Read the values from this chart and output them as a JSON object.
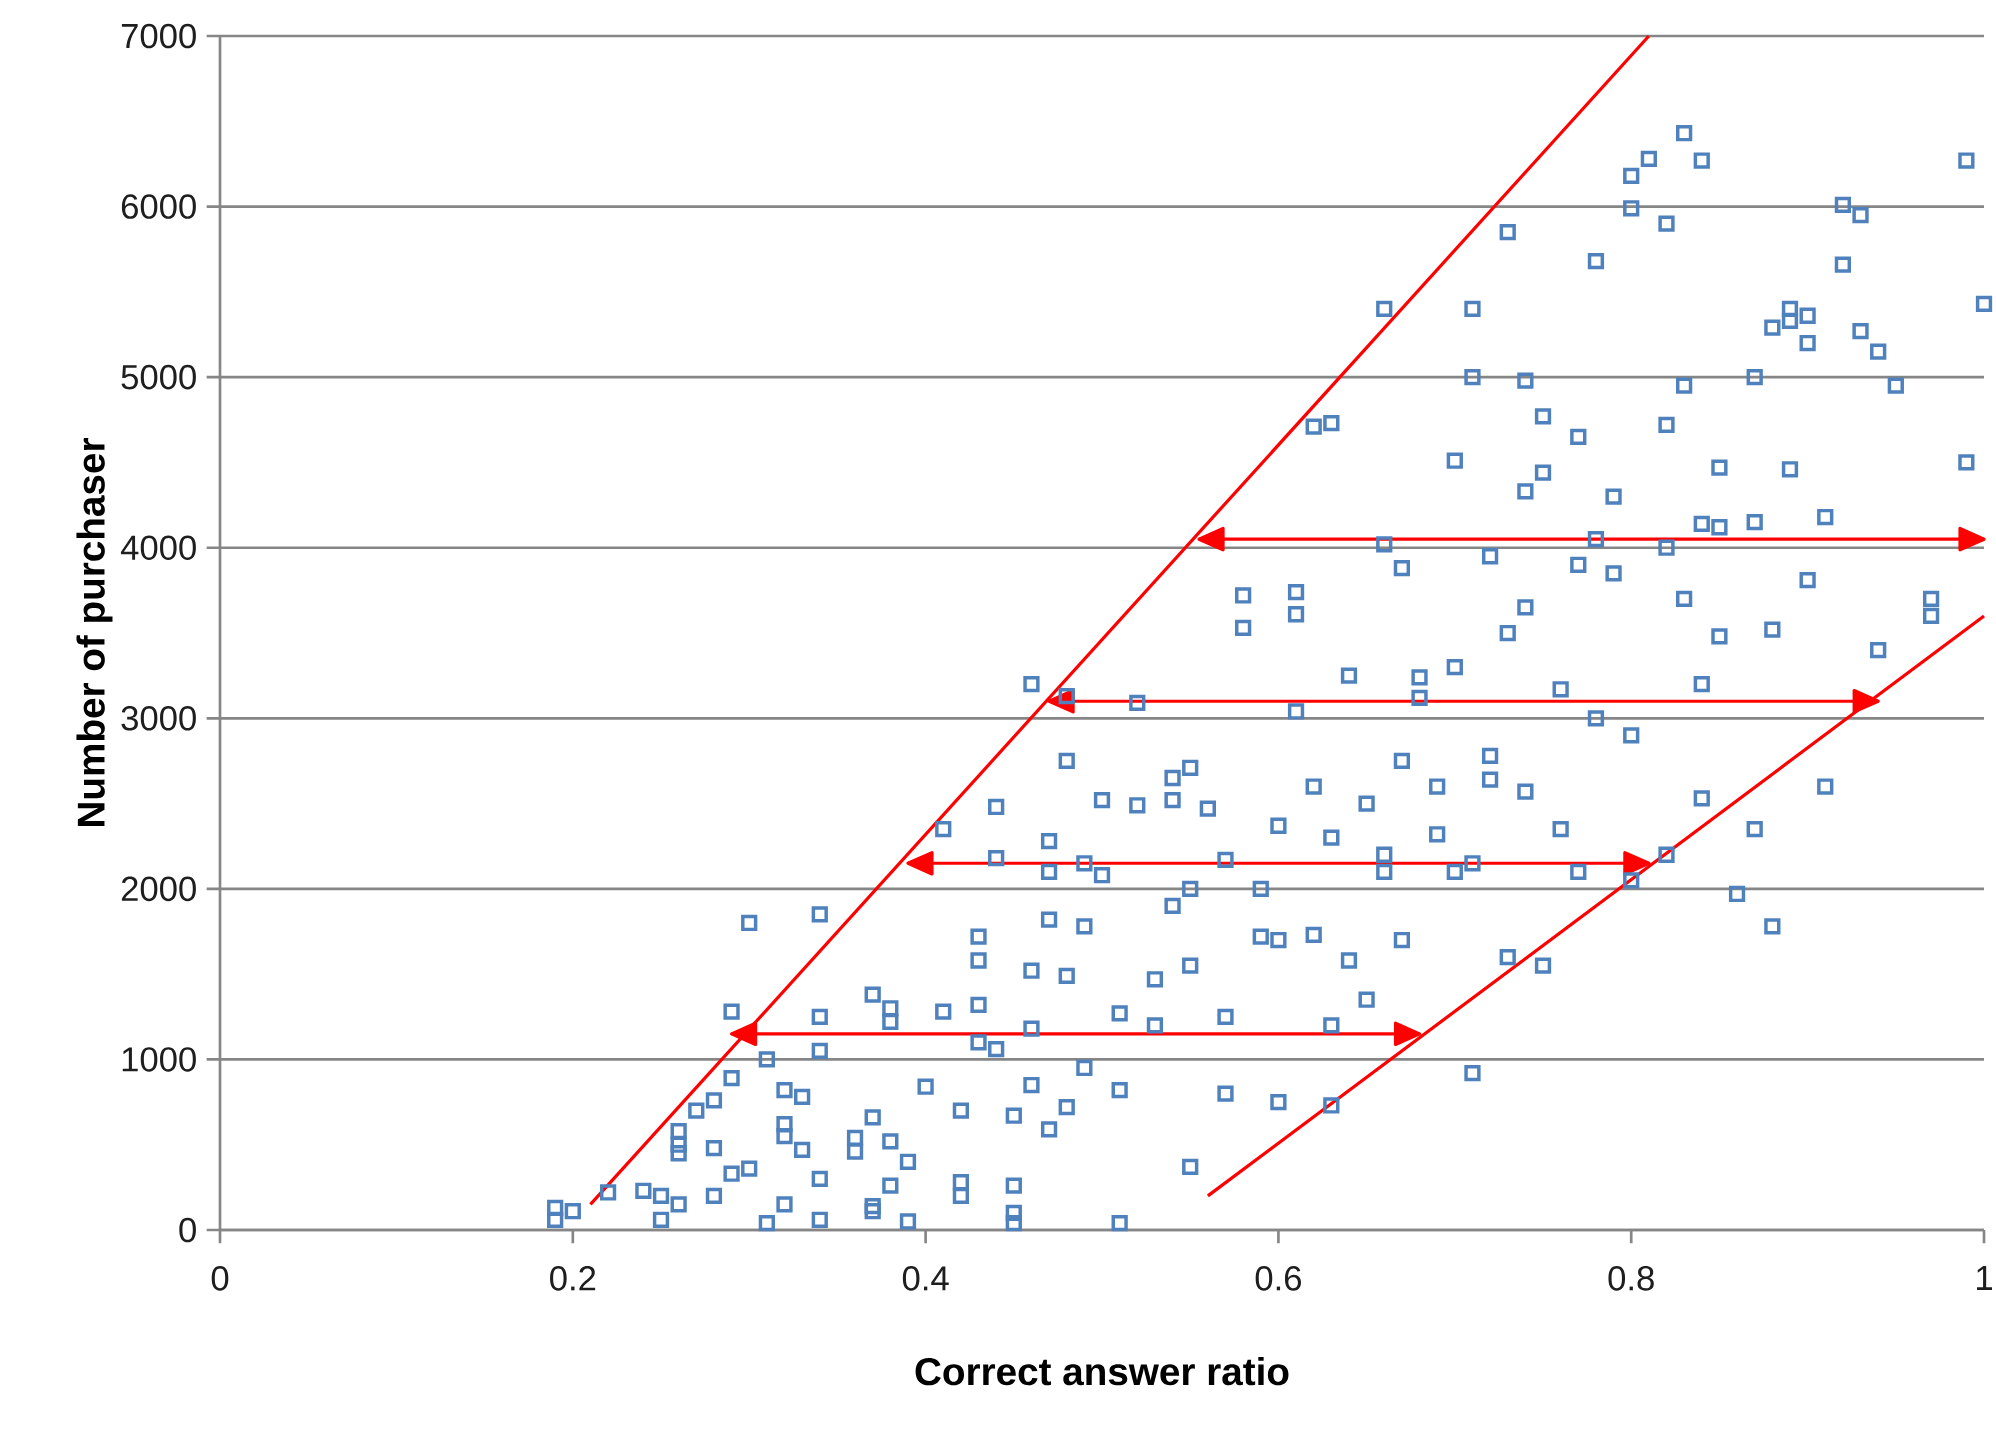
{
  "chart_data": {
    "type": "scatter",
    "xlabel": "Correct answer ratio",
    "ylabel": "Number of purchaser",
    "xlim": [
      0,
      1
    ],
    "ylim": [
      0,
      7000
    ],
    "xticks": [
      0,
      0.2,
      0.4,
      0.6,
      0.8,
      1
    ],
    "yticks": [
      0,
      1000,
      2000,
      3000,
      4000,
      5000,
      6000,
      7000
    ],
    "grid": "y",
    "marker": "square",
    "series": [
      {
        "type": "scatter",
        "color": "#4f81bd",
        "x": [
          0.19,
          0.19,
          0.2,
          0.22,
          0.24,
          0.25,
          0.25,
          0.26,
          0.26,
          0.26,
          0.26,
          0.27,
          0.28,
          0.28,
          0.28,
          0.29,
          0.29,
          0.29,
          0.3,
          0.3,
          0.31,
          0.31,
          0.32,
          0.32,
          0.32,
          0.32,
          0.33,
          0.33,
          0.34,
          0.34,
          0.34,
          0.34,
          0.34,
          0.36,
          0.36,
          0.37,
          0.37,
          0.37,
          0.37,
          0.38,
          0.38,
          0.38,
          0.38,
          0.39,
          0.39,
          0.4,
          0.41,
          0.41,
          0.42,
          0.42,
          0.42,
          0.43,
          0.43,
          0.43,
          0.43,
          0.44,
          0.44,
          0.44,
          0.45,
          0.45,
          0.45,
          0.45,
          0.46,
          0.46,
          0.46,
          0.46,
          0.47,
          0.47,
          0.47,
          0.47,
          0.48,
          0.48,
          0.48,
          0.48,
          0.49,
          0.49,
          0.49,
          0.5,
          0.5,
          0.51,
          0.51,
          0.51,
          0.52,
          0.52,
          0.53,
          0.53,
          0.54,
          0.54,
          0.54,
          0.55,
          0.55,
          0.55,
          0.55,
          0.56,
          0.57,
          0.57,
          0.57,
          0.58,
          0.58,
          0.59,
          0.59,
          0.6,
          0.6,
          0.6,
          0.61,
          0.61,
          0.61,
          0.62,
          0.62,
          0.62,
          0.63,
          0.63,
          0.63,
          0.63,
          0.64,
          0.64,
          0.65,
          0.65,
          0.66,
          0.66,
          0.66,
          0.66,
          0.67,
          0.67,
          0.67,
          0.68,
          0.68,
          0.69,
          0.69,
          0.7,
          0.7,
          0.7,
          0.71,
          0.71,
          0.71,
          0.71,
          0.72,
          0.72,
          0.72,
          0.73,
          0.73,
          0.73,
          0.74,
          0.74,
          0.74,
          0.74,
          0.75,
          0.75,
          0.75,
          0.76,
          0.76,
          0.77,
          0.77,
          0.77,
          0.78,
          0.78,
          0.78,
          0.79,
          0.79,
          0.8,
          0.8,
          0.8,
          0.8,
          0.81,
          0.82,
          0.82,
          0.82,
          0.82,
          0.83,
          0.83,
          0.83,
          0.84,
          0.84,
          0.84,
          0.84,
          0.85,
          0.85,
          0.85,
          0.86,
          0.87,
          0.87,
          0.87,
          0.88,
          0.88,
          0.88,
          0.89,
          0.89,
          0.89,
          0.9,
          0.9,
          0.9,
          0.91,
          0.91,
          0.92,
          0.92,
          0.93,
          0.93,
          0.94,
          0.94,
          0.95,
          0.97,
          0.97,
          0.99,
          0.99,
          1.0
        ],
        "values": [
          130,
          60,
          110,
          220,
          230,
          200,
          60,
          150,
          500,
          450,
          580,
          700,
          760,
          480,
          200,
          330,
          890,
          1280,
          1800,
          360,
          1000,
          40,
          820,
          620,
          150,
          550,
          780,
          470,
          1850,
          1050,
          1250,
          300,
          60,
          540,
          460,
          1380,
          660,
          140,
          110,
          1300,
          1220,
          520,
          260,
          400,
          50,
          840,
          2350,
          1280,
          700,
          280,
          200,
          1720,
          1580,
          1100,
          1320,
          2480,
          2180,
          1060,
          670,
          260,
          100,
          40,
          3200,
          1520,
          1180,
          850,
          2280,
          2100,
          1820,
          590,
          3130,
          2750,
          1490,
          720,
          2150,
          1780,
          950,
          2520,
          2080,
          1270,
          820,
          40,
          2490,
          3090,
          1470,
          1200,
          2650,
          2520,
          1900,
          2710,
          2000,
          1550,
          370,
          2470,
          2170,
          1250,
          800,
          3720,
          3530,
          2000,
          1720,
          2370,
          1700,
          750,
          3610,
          3740,
          3040,
          4710,
          2600,
          1730,
          4730,
          2300,
          1200,
          730,
          1580,
          3250,
          2500,
          1350,
          5400,
          2200,
          2100,
          4020,
          3880,
          2750,
          1700,
          3240,
          3120,
          2600,
          2320,
          4510,
          3300,
          2100,
          5000,
          5400,
          2150,
          920,
          3950,
          2640,
          2780,
          5850,
          3500,
          1600,
          4980,
          4330,
          3650,
          2570,
          4770,
          4440,
          1550,
          3170,
          2350,
          4650,
          3900,
          2100,
          5680,
          4050,
          3000,
          4300,
          3850,
          5990,
          6180,
          2900,
          2050,
          6280,
          5900,
          4720,
          4000,
          2200,
          6430,
          4950,
          3700,
          6270,
          4140,
          3200,
          2530,
          4470,
          3480,
          4120,
          1970,
          5000,
          4150,
          2350,
          5290,
          3520,
          1780,
          5330,
          4460,
          5400,
          5200,
          3810,
          5360,
          4180,
          2600,
          6010,
          5660,
          5950,
          5270,
          5150,
          3400,
          4950,
          3600,
          3700,
          6270,
          4500,
          5430
        ]
      },
      {
        "type": "line",
        "color": "#ff0000",
        "marker": "none",
        "x": [
          0.21,
          0.81
        ],
        "values": [
          150,
          7000
        ]
      },
      {
        "type": "line",
        "color": "#ff0000",
        "marker": "none",
        "x": [
          0.56,
          1.0
        ],
        "values": [
          200,
          3600
        ]
      },
      {
        "type": "line",
        "color": "#ff0000",
        "marker": "none",
        "x": [
          0.29,
          0.68
        ],
        "values": [
          1150,
          1150
        ]
      },
      {
        "type": "line",
        "color": "#ff0000",
        "marker": "none",
        "x": [
          0.39,
          0.81
        ],
        "values": [
          2150,
          2150
        ]
      },
      {
        "type": "line",
        "color": "#ff0000",
        "marker": "none",
        "x": [
          0.47,
          0.94
        ],
        "values": [
          3100,
          3100
        ]
      },
      {
        "type": "line",
        "color": "#ff0000",
        "marker": "none",
        "x": [
          0.555,
          1.0
        ],
        "values": [
          4050,
          4050
        ]
      }
    ]
  }
}
